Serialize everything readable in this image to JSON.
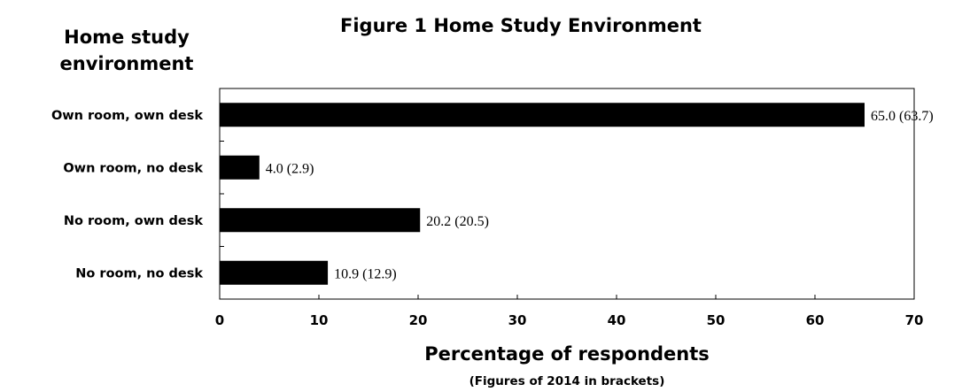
{
  "chart_data": {
    "type": "bar",
    "orientation": "horizontal",
    "title": "Figure 1  Home Study Environment",
    "ylabel_line1": "Home study",
    "ylabel_line2": "environment",
    "xlabel": "Percentage of respondents",
    "xlabel_sub": "(Figures of 2014 in brackets)",
    "categories": [
      "Own room, own desk",
      "Own room, no desk",
      "No room, own desk",
      "No room, no desk"
    ],
    "values": [
      65.0,
      4.0,
      20.2,
      10.9
    ],
    "values_2014": [
      63.7,
      2.9,
      20.5,
      12.9
    ],
    "data_labels": [
      "65.0 (63.7)",
      "4.0 (2.9)",
      "20.2 (20.5)",
      "10.9 (12.9)"
    ],
    "xlim": [
      0,
      70
    ],
    "xticks": [
      "0",
      "10",
      "20",
      "30",
      "40",
      "50",
      "60",
      "70"
    ],
    "grid": false,
    "bar_color": "#000000"
  }
}
